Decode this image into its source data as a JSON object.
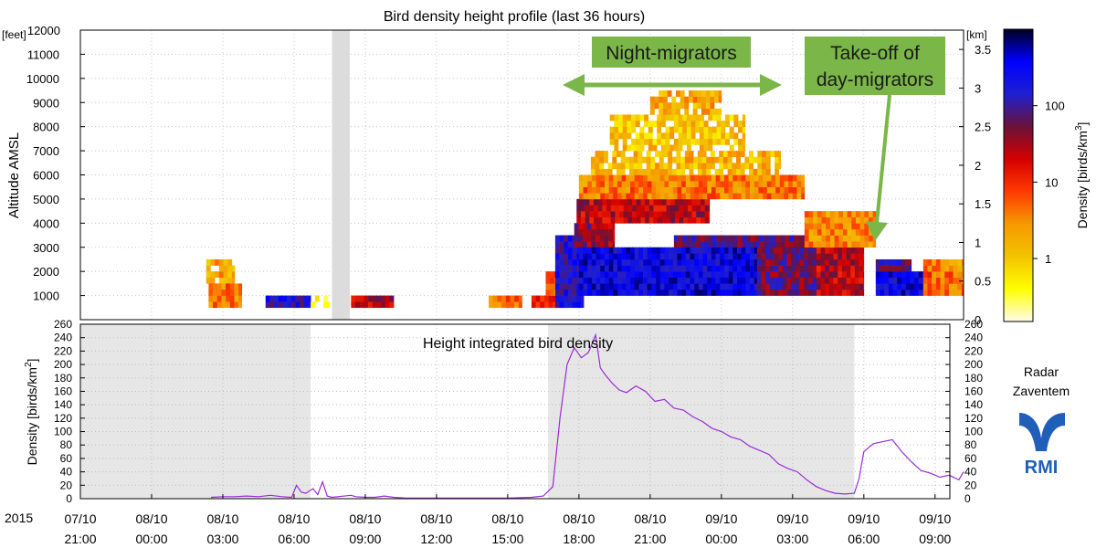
{
  "colors": {
    "gap_band": "#dcdcdc",
    "night_band": "#e6e6e6",
    "series_line": "#9a2bd6",
    "annotation_fill": "#7ab648",
    "annotation_arrow": "#7ab648",
    "logo_blue": "#1f5fb8",
    "colorscale": [
      "#fffbea",
      "#ffff00",
      "#f3c300",
      "#f59a00",
      "#ff3a00",
      "#d40000",
      "#6a1238",
      "#1f1fd0",
      "#0000ff",
      "#000022"
    ]
  },
  "year_label": "2015",
  "logo": {
    "line1": "Radar",
    "line2": "Zaventem",
    "icon": "rmi-logo-icon",
    "wordmark": "RMI"
  },
  "annotations": {
    "night": {
      "text": "Night-migrators",
      "arrow": "double-headed-arrow"
    },
    "day": {
      "line1": "Take-off of",
      "line2": "day-migrators",
      "arrow": "down-arrow"
    }
  },
  "chart_data": [
    {
      "type": "heatmap",
      "title": "Bird density height profile (last 36 hours)",
      "ylabel": "Altitude AMSL",
      "y_unit_left": "[feet]",
      "y_unit_right": "[km]",
      "ylim_feet": [
        0,
        12000
      ],
      "ylim_km": [
        0,
        3.75
      ],
      "yticks_feet": [
        1000,
        2000,
        3000,
        4000,
        5000,
        6000,
        7000,
        8000,
        9000,
        10000,
        11000,
        12000
      ],
      "yticks_km": [
        "0",
        "0.5",
        "1",
        "1.5",
        "2",
        "2.5",
        "3",
        "3.5"
      ],
      "x_range_hours": [
        0,
        37.2
      ],
      "x_ticks": [
        {
          "d": "07/10",
          "t": "21:00",
          "h": 0
        },
        {
          "d": "08/10",
          "t": "00:00",
          "h": 3
        },
        {
          "d": "08/10",
          "t": "03:00",
          "h": 6
        },
        {
          "d": "08/10",
          "t": "06:00",
          "h": 9
        },
        {
          "d": "08/10",
          "t": "09:00",
          "h": 12
        },
        {
          "d": "08/10",
          "t": "12:00",
          "h": 15
        },
        {
          "d": "08/10",
          "t": "15:00",
          "h": 18
        },
        {
          "d": "08/10",
          "t": "18:00",
          "h": 21
        },
        {
          "d": "08/10",
          "t": "21:00",
          "h": 24
        },
        {
          "d": "09/10",
          "t": "00:00",
          "h": 27
        },
        {
          "d": "09/10",
          "t": "03:00",
          "h": 30
        },
        {
          "d": "09/10",
          "t": "06:00",
          "h": 33
        },
        {
          "d": "09/10",
          "t": "09:00",
          "h": 36
        }
      ],
      "no_data_band_hours": [
        10.6,
        11.35
      ],
      "colorbar": {
        "label": "Density [birds/km³]",
        "label_main": "Density [birds/km",
        "label_sup": "3",
        "label_end": "]",
        "scale": "log",
        "range": [
          0.15,
          1000
        ],
        "ticks": [
          {
            "v": 1,
            "label": "1"
          },
          {
            "v": 10,
            "label": "10"
          },
          {
            "v": 100,
            "label": "100"
          }
        ]
      },
      "density_blocks": [
        {
          "h": [
            5.3,
            6.5
          ],
          "feet": [
            1500,
            2300
          ],
          "v": 2
        },
        {
          "h": [
            5.4,
            6.8
          ],
          "feet": [
            500,
            1500
          ],
          "v": 4
        },
        {
          "h": [
            7.8,
            9.7
          ],
          "feet": [
            500,
            1000
          ],
          "v": 150
        },
        {
          "h": [
            9.7,
            10.5
          ],
          "feet": [
            500,
            1000
          ],
          "v": 0.6
        },
        {
          "h": [
            11.4,
            13.2
          ],
          "feet": [
            500,
            1000
          ],
          "v": 30
        },
        {
          "h": [
            17.2,
            18.6
          ],
          "feet": [
            500,
            1000
          ],
          "v": 5
        },
        {
          "h": [
            19.0,
            20.5
          ],
          "feet": [
            500,
            1000
          ],
          "v": 8
        },
        {
          "h": [
            19.6,
            20.6
          ],
          "feet": [
            1000,
            2000
          ],
          "v": 5
        },
        {
          "h": [
            20.0,
            21.2
          ],
          "feet": [
            500,
            3500
          ],
          "v": 160
        },
        {
          "h": [
            20.8,
            22.5
          ],
          "feet": [
            3000,
            4000
          ],
          "v": 40
        },
        {
          "h": [
            20.9,
            26.5
          ],
          "feet": [
            4000,
            5000
          ],
          "v": 25
        },
        {
          "h": [
            21.0,
            30.5
          ],
          "feet": [
            5000,
            6000
          ],
          "v": 4
        },
        {
          "h": [
            21.5,
            29.5
          ],
          "feet": [
            6000,
            7000
          ],
          "v": 1.5
        },
        {
          "h": [
            22.3,
            28.0
          ],
          "feet": [
            7000,
            8500
          ],
          "v": 1.2
        },
        {
          "h": [
            24.0,
            27.0
          ],
          "feet": [
            8500,
            9500
          ],
          "v": 2
        },
        {
          "h": [
            21.0,
            28.5
          ],
          "feet": [
            1000,
            3000
          ],
          "v": 300
        },
        {
          "h": [
            28.5,
            31.0
          ],
          "feet": [
            1000,
            3000
          ],
          "v": 60
        },
        {
          "h": [
            31.0,
            33.0
          ],
          "feet": [
            1000,
            3000
          ],
          "v": 25
        },
        {
          "h": [
            25.0,
            30.5
          ],
          "feet": [
            3000,
            3500
          ],
          "v": 70
        },
        {
          "h": [
            30.5,
            33.5
          ],
          "feet": [
            3000,
            4500
          ],
          "v": 3
        },
        {
          "h": [
            33.5,
            35.5
          ],
          "feet": [
            1000,
            2000
          ],
          "v": 300
        },
        {
          "h": [
            33.5,
            35.0
          ],
          "feet": [
            2000,
            2500
          ],
          "v": 80
        },
        {
          "h": [
            35.5,
            37.2
          ],
          "feet": [
            1000,
            2000
          ],
          "v": 5
        },
        {
          "h": [
            35.5,
            37.2
          ],
          "feet": [
            2000,
            2500
          ],
          "v": 3
        }
      ]
    },
    {
      "type": "line",
      "title": "Height integrated bird density",
      "ylabel_main": "Density [birds/km",
      "ylabel_sup": "2",
      "ylabel_end": "]",
      "ylim": [
        0,
        260
      ],
      "yticks": [
        0,
        20,
        40,
        60,
        80,
        100,
        120,
        140,
        160,
        180,
        200,
        220,
        240,
        260
      ],
      "night_bands_hours": [
        [
          0,
          9.7
        ],
        [
          19.7,
          32.6
        ]
      ],
      "series": [
        {
          "x": [
            5.5,
            6.0,
            6.5,
            7.0,
            7.5,
            8.0,
            8.5,
            8.9,
            9.1,
            9.3,
            9.5,
            9.8,
            10.0,
            10.2,
            10.4,
            10.6,
            11.4,
            11.6,
            12.0,
            12.4,
            12.8,
            13.2,
            13.7,
            17.0,
            18.0,
            19.0,
            19.5,
            19.9,
            20.2,
            20.5,
            20.8,
            21.1,
            21.4,
            21.7,
            21.9,
            22.1,
            22.4,
            22.7,
            23.0,
            23.4,
            23.8,
            24.2,
            24.6,
            25.0,
            25.4,
            25.8,
            26.2,
            26.6,
            27.0,
            27.4,
            27.8,
            28.2,
            28.6,
            29.0,
            29.4,
            29.8,
            30.2,
            30.6,
            31.0,
            31.4,
            31.8,
            32.2,
            32.6,
            32.8,
            33.0,
            33.2,
            33.4,
            33.8,
            34.2,
            34.6,
            35.0,
            35.4,
            35.8,
            36.2,
            36.6,
            37.0,
            37.2
          ],
          "y": [
            2,
            3,
            3,
            4,
            3,
            5,
            3,
            2,
            20,
            10,
            8,
            15,
            6,
            25,
            4,
            2,
            5,
            3,
            2,
            2,
            4,
            2,
            1,
            1,
            1,
            2,
            4,
            18,
            120,
            200,
            225,
            210,
            218,
            244,
            195,
            185,
            172,
            162,
            158,
            168,
            160,
            145,
            148,
            135,
            132,
            122,
            115,
            105,
            100,
            92,
            88,
            78,
            72,
            66,
            52,
            45,
            40,
            28,
            18,
            12,
            8,
            7,
            8,
            30,
            70,
            76,
            82,
            85,
            88,
            70,
            55,
            42,
            38,
            32,
            35,
            28,
            40
          ]
        }
      ]
    }
  ]
}
